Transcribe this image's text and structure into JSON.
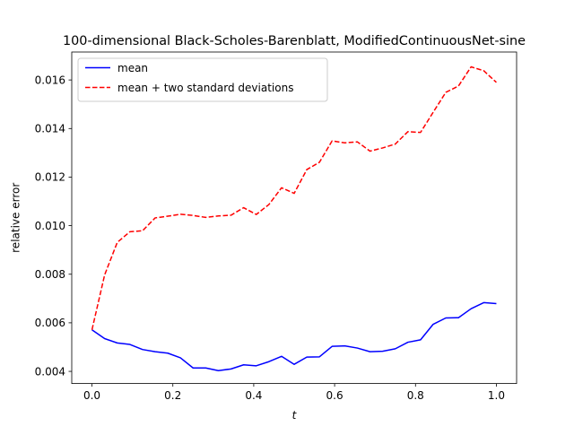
{
  "chart_data": {
    "type": "line",
    "title": "100-dimensional Black-Scholes-Barenblatt, ModifiedContinuousNet-sine",
    "xlabel": "t",
    "ylabel": "relative error",
    "xlim": [
      -0.05,
      1.05
    ],
    "ylim": [
      0.0035,
      0.01715
    ],
    "xticks": [
      0.0,
      0.2,
      0.4,
      0.6,
      0.8,
      1.0
    ],
    "xtick_labels": [
      "0.0",
      "0.2",
      "0.4",
      "0.6",
      "0.8",
      "1.0"
    ],
    "yticks": [
      0.004,
      0.006,
      0.008,
      0.01,
      0.012,
      0.014,
      0.016
    ],
    "ytick_labels": [
      "0.004",
      "0.006",
      "0.008",
      "0.010",
      "0.012",
      "0.014",
      "0.016"
    ],
    "grid": false,
    "legend_placement": "upper-left",
    "x": [
      0.0,
      0.03125,
      0.0625,
      0.09375,
      0.125,
      0.15625,
      0.1875,
      0.21875,
      0.25,
      0.28125,
      0.3125,
      0.34375,
      0.375,
      0.40625,
      0.4375,
      0.46875,
      0.5,
      0.53125,
      0.5625,
      0.59375,
      0.625,
      0.65625,
      0.6875,
      0.71875,
      0.75,
      0.78125,
      0.8125,
      0.84375,
      0.875,
      0.90625,
      0.9375,
      0.96875,
      1.0
    ],
    "series": [
      {
        "name": "mean",
        "color": "#0000ff",
        "linestyle": "solid",
        "values": [
          0.00571,
          0.00535,
          0.00517,
          0.00511,
          0.0049,
          0.00481,
          0.00475,
          0.00456,
          0.00414,
          0.00414,
          0.00403,
          0.0041,
          0.00427,
          0.00423,
          0.0044,
          0.00462,
          0.00429,
          0.00459,
          0.0046,
          0.00503,
          0.00505,
          0.00496,
          0.00481,
          0.00483,
          0.00493,
          0.0052,
          0.0053,
          0.00594,
          0.0062,
          0.00621,
          0.00658,
          0.00683,
          0.00679
        ]
      },
      {
        "name": "mean + two standard deviations",
        "color": "#ff0000",
        "linestyle": "dashed",
        "values": [
          0.00571,
          0.00797,
          0.00931,
          0.00975,
          0.00979,
          0.01032,
          0.01039,
          0.01047,
          0.01042,
          0.01034,
          0.0104,
          0.01043,
          0.01074,
          0.01046,
          0.01087,
          0.01156,
          0.01133,
          0.01231,
          0.01261,
          0.01349,
          0.01341,
          0.01345,
          0.01307,
          0.0132,
          0.01336,
          0.01387,
          0.01384,
          0.01467,
          0.01549,
          0.01575,
          0.01654,
          0.01638,
          0.0159
        ]
      }
    ]
  }
}
